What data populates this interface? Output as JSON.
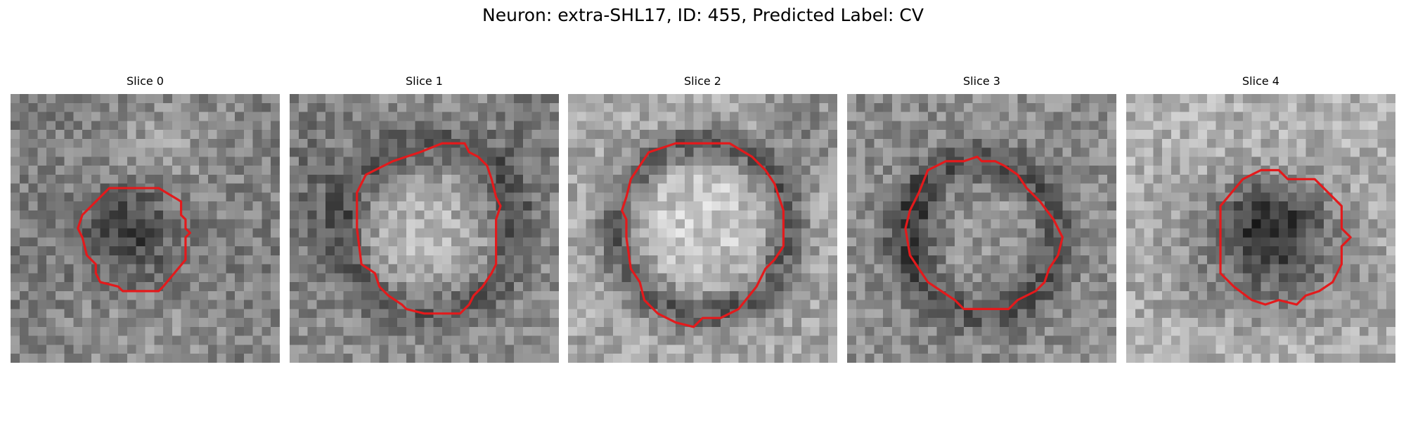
{
  "figure": {
    "title": "Neuron: extra-SHL17, ID: 455, Predicted Label: CV"
  },
  "panels": [
    {
      "title": "Slice 0"
    },
    {
      "title": "Slice 1"
    },
    {
      "title": "Slice 2"
    },
    {
      "title": "Slice 3"
    },
    {
      "title": "Slice 4"
    }
  ],
  "colors": {
    "contour": "#e31a1c",
    "colormap": "gray"
  }
}
